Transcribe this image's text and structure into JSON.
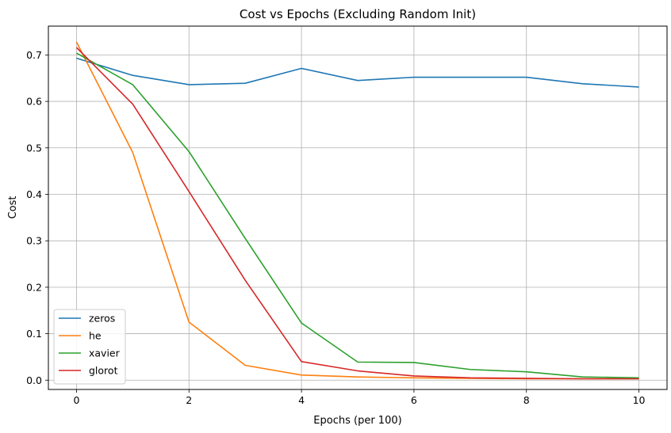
{
  "chart_data": {
    "type": "line",
    "title": "Cost vs Epochs (Excluding Random Init)",
    "xlabel": "Epochs (per 100)",
    "ylabel": "Cost",
    "xlim": [
      -0.5,
      10.5
    ],
    "ylim": [
      -0.02,
      0.762
    ],
    "xticks": [
      0,
      2,
      4,
      6,
      8,
      10
    ],
    "yticks": [
      0.0,
      0.1,
      0.2,
      0.3,
      0.4,
      0.5,
      0.6,
      0.7
    ],
    "ytick_labels": [
      "0.0",
      "0.1",
      "0.2",
      "0.3",
      "0.4",
      "0.5",
      "0.6",
      "0.7"
    ],
    "xtick_labels": [
      "0",
      "2",
      "4",
      "6",
      "8",
      "10"
    ],
    "grid": true,
    "legend_position": "lower-left",
    "x": [
      0,
      1,
      2,
      3,
      4,
      5,
      6,
      7,
      8,
      9,
      10
    ],
    "series": [
      {
        "name": "zeros",
        "color": "#1f77b4",
        "values": [
          0.693,
          0.656,
          0.636,
          0.639,
          0.671,
          0.645,
          0.652,
          0.652,
          0.652,
          0.638,
          0.631
        ]
      },
      {
        "name": "he",
        "color": "#ff7f0e",
        "values": [
          0.728,
          0.49,
          0.125,
          0.032,
          0.011,
          0.007,
          0.005,
          0.004,
          0.003,
          0.003,
          0.003
        ]
      },
      {
        "name": "xavier",
        "color": "#2ca02c",
        "values": [
          0.704,
          0.636,
          0.492,
          0.305,
          0.123,
          0.039,
          0.038,
          0.023,
          0.018,
          0.007,
          0.005
        ]
      },
      {
        "name": "glorot",
        "color": "#d62728",
        "values": [
          0.716,
          0.594,
          0.406,
          0.215,
          0.04,
          0.02,
          0.009,
          0.005,
          0.004,
          0.003,
          0.003
        ]
      }
    ]
  }
}
